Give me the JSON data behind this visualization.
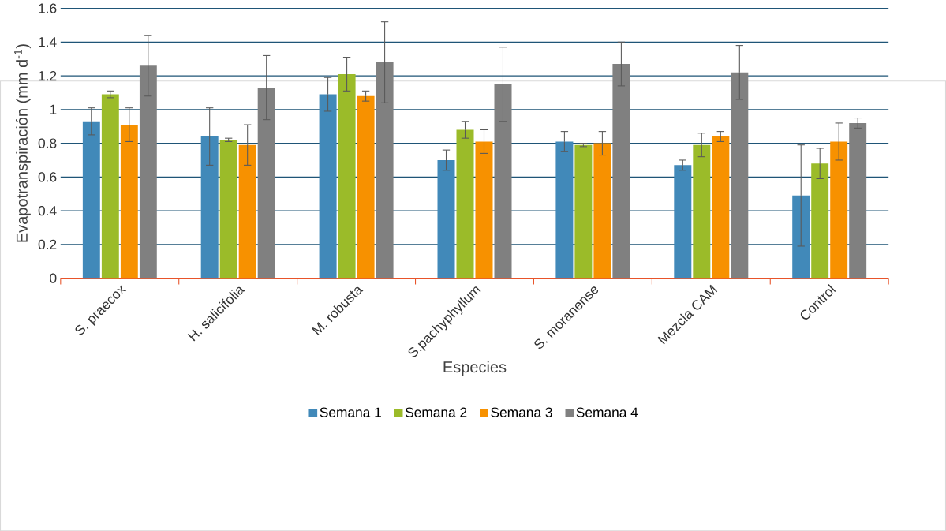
{
  "chart_data": {
    "type": "bar",
    "xlabel": "Especies",
    "ylabel": "Evapotranspiración (mm d$^{-1}$)",
    "categories": [
      "S. praecox",
      "H. salicifolia",
      "M. robusta",
      "S.pachyphyllum",
      "S. moranense",
      "Mezcla CAM",
      "Control"
    ],
    "series": [
      {
        "name": "Semana 1",
        "color": "#4189b9",
        "values": [
          0.93,
          0.84,
          1.09,
          0.7,
          0.81,
          0.67,
          0.49
        ],
        "errors": [
          0.08,
          0.17,
          0.1,
          0.06,
          0.06,
          0.03,
          0.3
        ]
      },
      {
        "name": "Semana 2",
        "color": "#9bbb29",
        "values": [
          1.09,
          0.82,
          1.21,
          0.88,
          0.79,
          0.79,
          0.68
        ],
        "errors": [
          0.02,
          0.01,
          0.1,
          0.05,
          0.01,
          0.07,
          0.09
        ]
      },
      {
        "name": "Semana 3",
        "color": "#f79100",
        "values": [
          0.91,
          0.79,
          1.08,
          0.81,
          0.8,
          0.84,
          0.81
        ],
        "errors": [
          0.1,
          0.12,
          0.03,
          0.07,
          0.07,
          0.03,
          0.11
        ]
      },
      {
        "name": "Semana 4",
        "color": "#808080",
        "values": [
          1.26,
          1.13,
          1.28,
          1.15,
          1.27,
          1.22,
          0.92
        ],
        "errors": [
          0.18,
          0.19,
          0.24,
          0.22,
          0.13,
          0.16,
          0.03
        ]
      }
    ],
    "ylim": [
      0,
      1.6
    ],
    "yticks": [
      0,
      0.2,
      0.4,
      0.6,
      0.8,
      1,
      1.2,
      1.4,
      1.6
    ],
    "grid": "y",
    "legend": "bottom"
  }
}
